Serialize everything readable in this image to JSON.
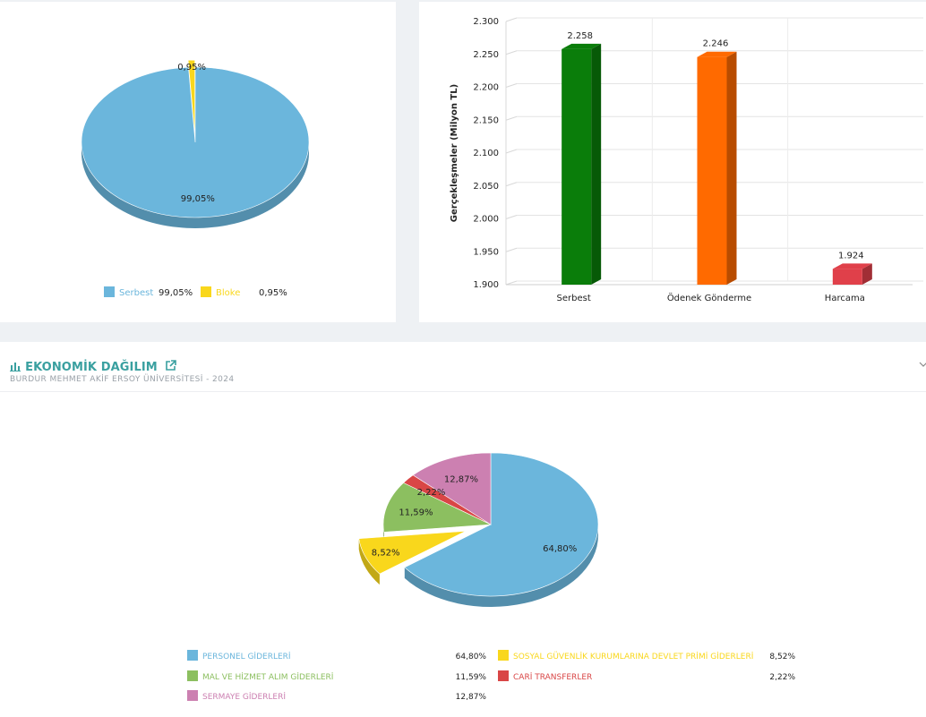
{
  "section": {
    "title": "EKONOMİK DAĞILIM",
    "subtitle": "BURDUR MEHMET AKİF ERSOY ÜNİVERSİTESİ - 2024",
    "title_icon": "bar-chart-icon",
    "link_icon": "external-link-icon",
    "collapse_icon": "chevron-down-icon"
  },
  "chart_data": [
    {
      "type": "pie",
      "labels": [
        "Serbest",
        "Bloke"
      ],
      "values": [
        99.05,
        0.95
      ],
      "data_labels": [
        "99,05%",
        "0,95%"
      ],
      "legend_values": [
        "99,05%",
        "0,95%"
      ],
      "colors": [
        "#6bb6dc",
        "#f9d71c"
      ],
      "legend_placement": "bottom"
    },
    {
      "type": "bar",
      "categories": [
        "Serbest",
        "Ödenek Gönderme",
        "Harcama"
      ],
      "values": [
        2.258,
        2.246,
        1.924
      ],
      "data_labels": [
        "2.258",
        "2.246",
        "1.924"
      ],
      "colors": [
        "#0a7d0a",
        "#ff6a00",
        "#e0404a"
      ],
      "ylabel": "Gerçekleşmeler (Milyon TL)",
      "ylim": [
        1.9,
        2.3
      ],
      "yticks": [
        1.9,
        1.95,
        2.0,
        2.05,
        2.1,
        2.15,
        2.2,
        2.25,
        2.3
      ],
      "ytick_labels": [
        "1.900",
        "1.950",
        "2.000",
        "2.050",
        "2.100",
        "2.150",
        "2.200",
        "2.250",
        "2.300"
      ],
      "grid": true
    },
    {
      "type": "pie",
      "labels": [
        "PERSONEL GİDERLERİ",
        "SOSYAL GÜVENLİK KURUMLARINA DEVLET PRİMİ GİDERLERİ",
        "MAL VE HİZMET ALIM GİDERLERİ",
        "CARİ TRANSFERLER",
        "SERMAYE GİDERLERİ"
      ],
      "values": [
        64.8,
        8.52,
        11.59,
        2.22,
        12.87
      ],
      "data_labels": [
        "64,80%",
        "8,52%",
        "11,59%",
        "2,22%",
        "12,87%"
      ],
      "legend_values": [
        "64,80%",
        "8,52%",
        "11,59%",
        "2,22%",
        "12,87%"
      ],
      "colors": [
        "#6bb6dc",
        "#f9d71c",
        "#8cbf60",
        "#d94646",
        "#cc80b1"
      ],
      "exploded": "SOSYAL GÜVENLİK KURUMLARINA DEVLET PRİMİ GİDERLERİ",
      "legend_placement": "bottom"
    }
  ]
}
